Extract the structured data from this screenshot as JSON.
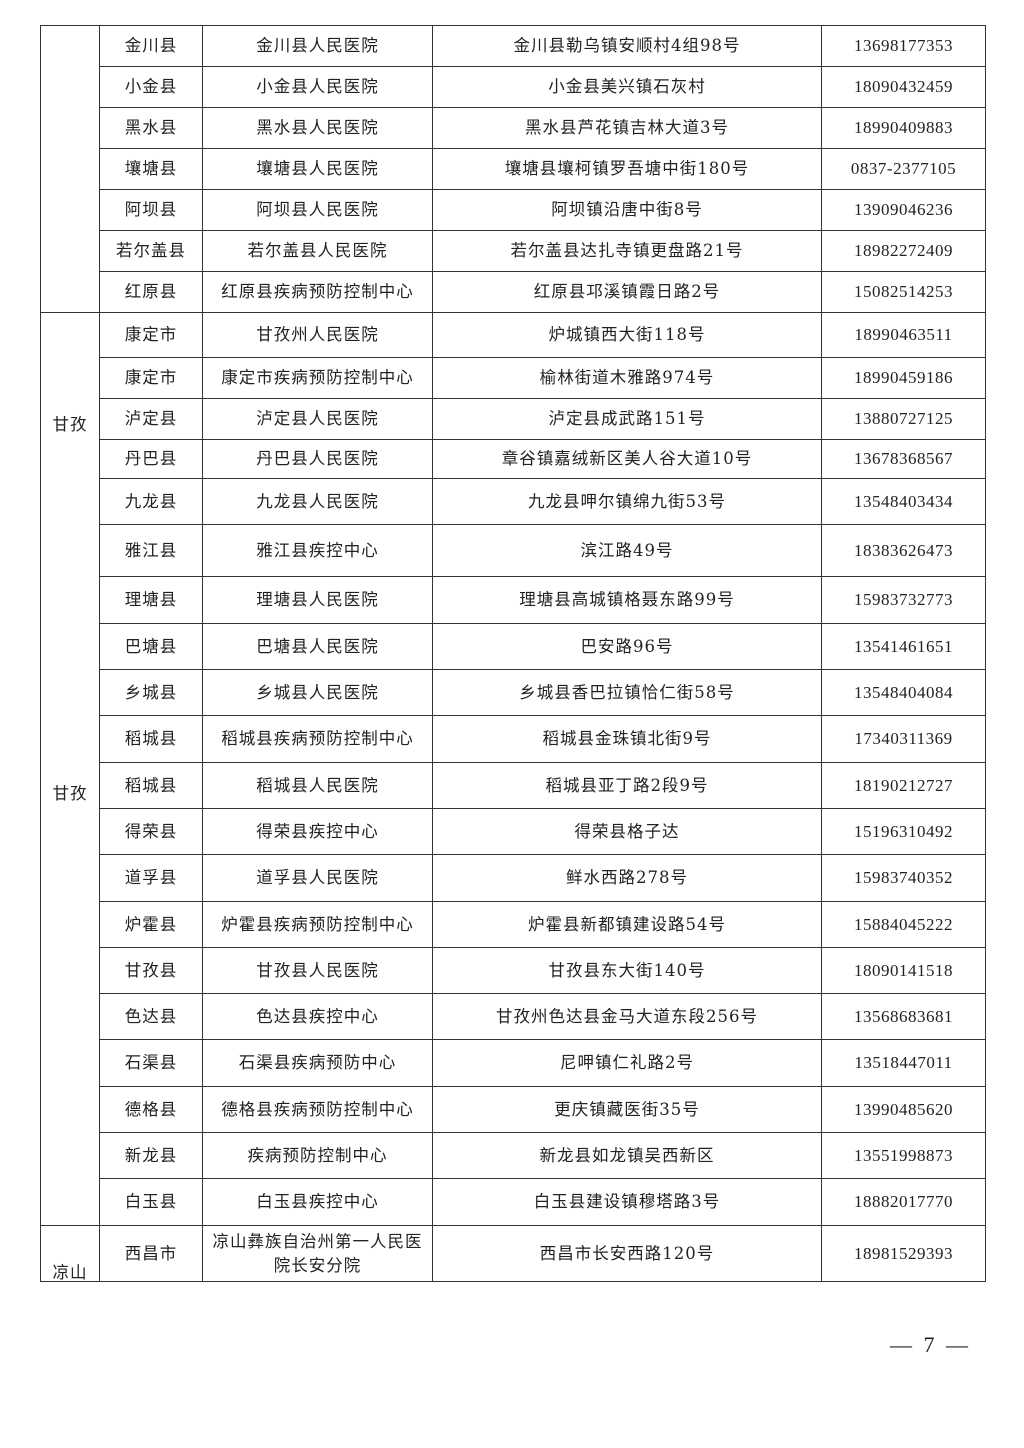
{
  "sections": [
    {
      "region_labels": [],
      "rows": [
        {
          "county": "金川县",
          "institution": "金川县人民医院",
          "address": "金川县勒乌镇安顺村4组98号",
          "phone": "13698177353"
        },
        {
          "county": "小金县",
          "institution": "小金县人民医院",
          "address": "小金县美兴镇石灰村",
          "phone": "18090432459"
        },
        {
          "county": "黑水县",
          "institution": "黑水县人民医院",
          "address": "黑水县芦花镇吉林大道3号",
          "phone": "18990409883"
        },
        {
          "county": "壤塘县",
          "institution": "壤塘县人民医院",
          "address": "壤塘县壤柯镇罗吾塘中街180号",
          "phone": "0837-2377105"
        },
        {
          "county": "阿坝县",
          "institution": "阿坝县人民医院",
          "address": "阿坝镇沿唐中街8号",
          "phone": "13909046236"
        },
        {
          "county": "若尔盖县",
          "institution": "若尔盖县人民医院",
          "address": "若尔盖县达扎寺镇更盘路21号",
          "phone": "18982272409"
        },
        {
          "county": "红原县",
          "institution": "红原县疾病预防控制中心",
          "address": "红原县邛溪镇霞日路2号",
          "phone": "15082514253"
        }
      ]
    },
    {
      "region_labels": [
        "甘孜",
        "甘孜"
      ],
      "rows": [
        {
          "county": "康定市",
          "institution": "甘孜州人民医院",
          "address": "炉城镇西大街118号",
          "phone": "18990463511"
        },
        {
          "county": "康定市",
          "institution": "康定市疾病预防控制中心",
          "address": "榆林街道木雅路974号",
          "phone": "18990459186"
        },
        {
          "county": "泸定县",
          "institution": "泸定县人民医院",
          "address": "泸定县成武路151号",
          "phone": "13880727125"
        },
        {
          "county": "丹巴县",
          "institution": "丹巴县人民医院",
          "address": "章谷镇嘉绒新区美人谷大道10号",
          "phone": "13678368567"
        },
        {
          "county": "九龙县",
          "institution": "九龙县人民医院",
          "address": "九龙县呷尔镇绵九街53号",
          "phone": "13548403434"
        },
        {
          "county": "雅江县",
          "institution": "雅江县疾控中心",
          "address": "滨江路49号",
          "phone": "18383626473"
        },
        {
          "county": "理塘县",
          "institution": "理塘县人民医院",
          "address": "理塘县高城镇格聂东路99号",
          "phone": "15983732773"
        },
        {
          "county": "巴塘县",
          "institution": "巴塘县人民医院",
          "address": "巴安路96号",
          "phone": "13541461651"
        },
        {
          "county": "乡城县",
          "institution": "乡城县人民医院",
          "address": "乡城县香巴拉镇恰仁街58号",
          "phone": "13548404084"
        },
        {
          "county": "稻城县",
          "institution": "稻城县疾病预防控制中心",
          "address": "稻城县金珠镇北街9号",
          "phone": "17340311369"
        },
        {
          "county": "稻城县",
          "institution": "稻城县人民医院",
          "address": "稻城县亚丁路2段9号",
          "phone": "18190212727"
        },
        {
          "county": "得荣县",
          "institution": "得荣县疾控中心",
          "address": "得荣县格子达",
          "phone": "15196310492"
        },
        {
          "county": "道孚县",
          "institution": "道孚县人民医院",
          "address": "鲜水西路278号",
          "phone": "15983740352"
        },
        {
          "county": "炉霍县",
          "institution": "炉霍县疾病预防控制中心",
          "address": "炉霍县新都镇建设路54号",
          "phone": "15884045222"
        },
        {
          "county": "甘孜县",
          "institution": "甘孜县人民医院",
          "address": "甘孜县东大街140号",
          "phone": "18090141518"
        },
        {
          "county": "色达县",
          "institution": "色达县疾控中心",
          "address": "甘孜州色达县金马大道东段256号",
          "phone": "13568683681"
        },
        {
          "county": "石渠县",
          "institution": "石渠县疾病预防中心",
          "address": "尼呷镇仁礼路2号",
          "phone": "13518447011"
        },
        {
          "county": "德格县",
          "institution": "德格县疾病预防控制中心",
          "address": "更庆镇藏医街35号",
          "phone": "13990485620"
        },
        {
          "county": "新龙县",
          "institution": "疾病预防控制中心",
          "address": "新龙县如龙镇吴西新区",
          "phone": "13551998873"
        },
        {
          "county": "白玉县",
          "institution": "白玉县疾控中心",
          "address": "白玉县建设镇穆塔路3号",
          "phone": "18882017770"
        }
      ]
    },
    {
      "region_labels": [
        "凉山"
      ],
      "rows": [
        {
          "county": "西昌市",
          "institution": "凉山彝族自治州第一人民医院长安分院",
          "address": "西昌市长安西路120号",
          "phone": "18981529393"
        }
      ]
    }
  ],
  "footer": {
    "page_number": "— 7 —"
  }
}
